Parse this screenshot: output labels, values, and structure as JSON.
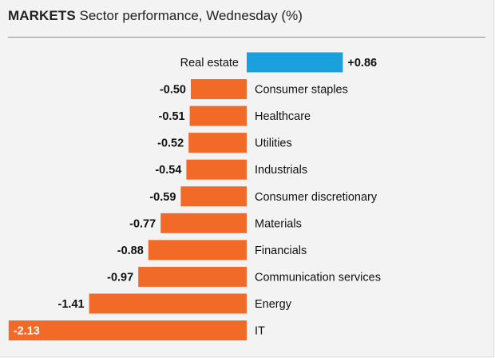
{
  "header": {
    "kicker": "MARKETS",
    "title": "Sector performance, Wednesday (%)"
  },
  "colors": {
    "positive": "#1aa0dc",
    "negative": "#f26a27",
    "text": "#111111",
    "negative_label_on_bar": "#ffffff"
  },
  "chart_data": {
    "type": "bar",
    "orientation": "horizontal",
    "title": "Sector performance, Wednesday (%)",
    "categories": [
      "Real estate",
      "Consumer staples",
      "Healthcare",
      "Utilities",
      "Industrials",
      "Consumer discretionary",
      "Materials",
      "Financials",
      "Communication services",
      "Energy",
      "IT"
    ],
    "values": [
      0.86,
      -0.5,
      -0.51,
      -0.52,
      -0.54,
      -0.59,
      -0.77,
      -0.88,
      -0.97,
      -1.41,
      -2.13
    ],
    "value_labels": [
      "+0.86",
      "-0.50",
      "-0.51",
      "-0.52",
      "-0.54",
      "-0.59",
      "-0.77",
      "-0.88",
      "-0.97",
      "-1.41",
      "-2.13"
    ],
    "grid": false,
    "legend": "none"
  }
}
